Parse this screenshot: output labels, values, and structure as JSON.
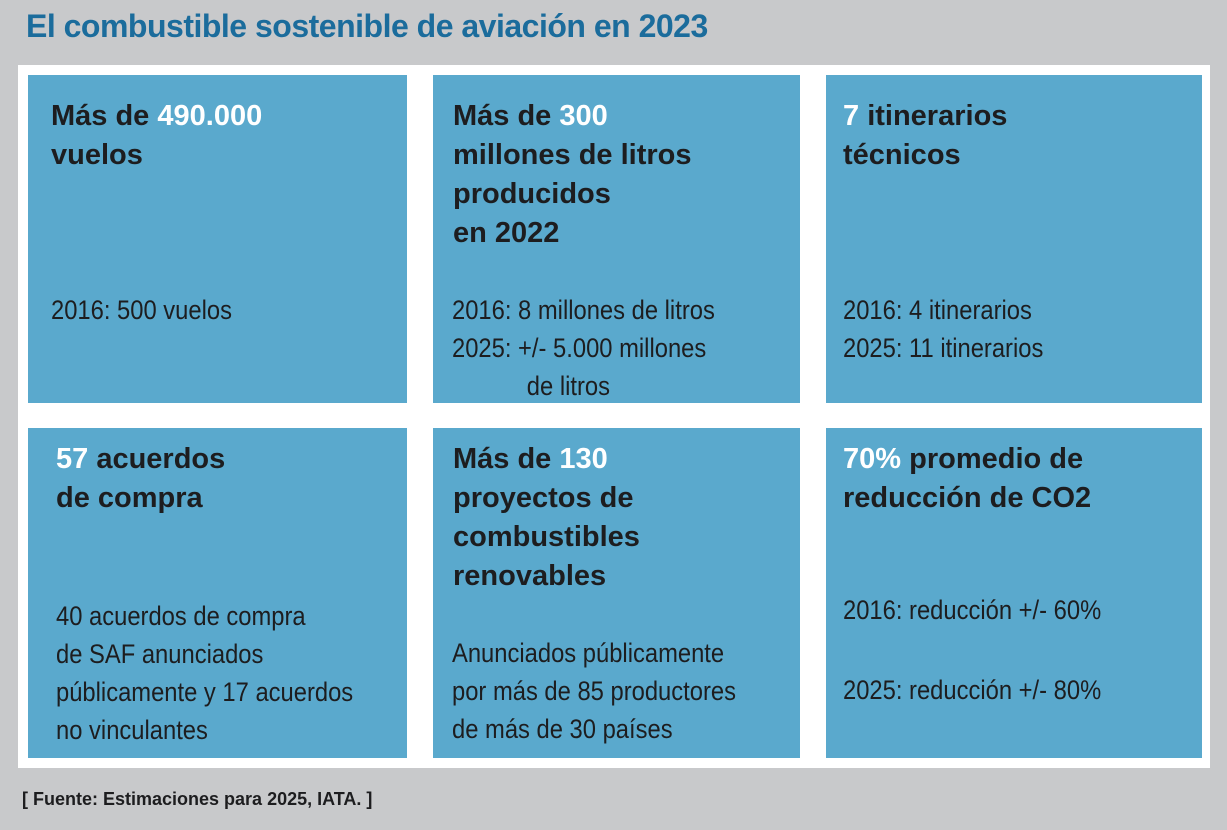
{
  "title": "El combustible sostenible de aviación en 2023",
  "cards": [
    {
      "pre": "Más de ",
      "highlight": "490.000",
      "rest_lines": [
        "vuelos"
      ],
      "details": [
        "2016: 500 vuelos"
      ]
    },
    {
      "pre": "Más de ",
      "highlight": "300",
      "rest_lines": [
        "millones de litros",
        "producidos",
        "en 2022"
      ],
      "details": [
        "2016: 8 millones de litros",
        "2025: +/- 5.000 millones",
        "de litros"
      ]
    },
    {
      "pre": "",
      "highlight": "7",
      "after": " itinerarios",
      "rest_lines": [
        "técnicos"
      ],
      "details": [
        "2016: 4 itinerarios",
        "2025: 11 itinerarios"
      ]
    },
    {
      "pre": "",
      "highlight": "57",
      "after": " acuerdos",
      "rest_lines": [
        "de compra"
      ],
      "details": [
        "40 acuerdos de compra",
        "de SAF anunciados",
        "públicamente y 17 acuerdos",
        "no vinculantes"
      ]
    },
    {
      "pre": "Más de ",
      "highlight": "130",
      "rest_lines": [
        "proyectos de",
        "combustibles",
        "renovables"
      ],
      "details": [
        "Anunciados públicamente",
        "por más de 85 productores",
        "de más de 30 países"
      ]
    },
    {
      "pre": "",
      "highlight": "70%",
      "after": " promedio de",
      "rest_lines": [
        "reducción de CO2"
      ],
      "details": [
        "2016: reducción +/- 60%",
        "2025: reducción +/- 80%"
      ]
    }
  ],
  "source": "[ Fuente: Estimaciones para 2025, IATA. ]",
  "colors": {
    "background": "#c8c9cb",
    "title": "#1b6c9c",
    "card": "#5aa9cd",
    "highlight": "#ffffff",
    "text": "#1d1d1f"
  }
}
